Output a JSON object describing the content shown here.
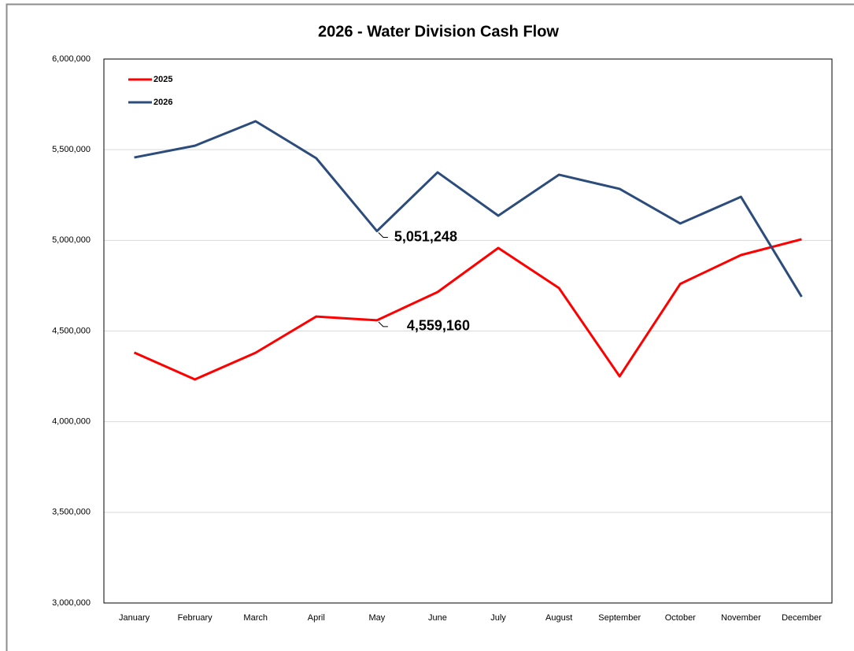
{
  "chart_data": {
    "type": "line",
    "title": "2026 - Water Division Cash Flow",
    "categories": [
      "January",
      "February",
      "March",
      "April",
      "May",
      "June",
      "July",
      "August",
      "September",
      "October",
      "November",
      "December"
    ],
    "series": [
      {
        "name": "2025",
        "color": "#ff0000",
        "values": [
          4381000,
          4233000,
          4380000,
          4580000,
          4559160,
          4715000,
          4958000,
          4737000,
          4250000,
          4760000,
          4919000,
          5006000
        ],
        "value_labels": [
          null,
          null,
          null,
          null,
          "4,559,160",
          null,
          null,
          null,
          null,
          null,
          null,
          null
        ]
      },
      {
        "name": "2026",
        "color": "#2c4c7c",
        "values": [
          5457000,
          5522000,
          5657000,
          5453000,
          5051248,
          5375000,
          5136000,
          5362000,
          5284000,
          5093000,
          5240000,
          4689000
        ],
        "value_labels": [
          null,
          null,
          null,
          null,
          "5,051,248",
          null,
          null,
          null,
          null,
          null,
          null,
          null
        ]
      }
    ],
    "ylim": [
      3000000,
      6000000
    ],
    "yticks": [
      {
        "value": 3000000,
        "label": "3,000,000"
      },
      {
        "value": 3500000,
        "label": "3,500,000"
      },
      {
        "value": 4000000,
        "label": "4,000,000"
      },
      {
        "value": 4500000,
        "label": "4,500,000"
      },
      {
        "value": 5000000,
        "label": "5,000,000"
      },
      {
        "value": 5500000,
        "label": "5,500,000"
      },
      {
        "value": 6000000,
        "label": "6,000,000"
      }
    ],
    "grid": true,
    "legend": "upper-left"
  }
}
